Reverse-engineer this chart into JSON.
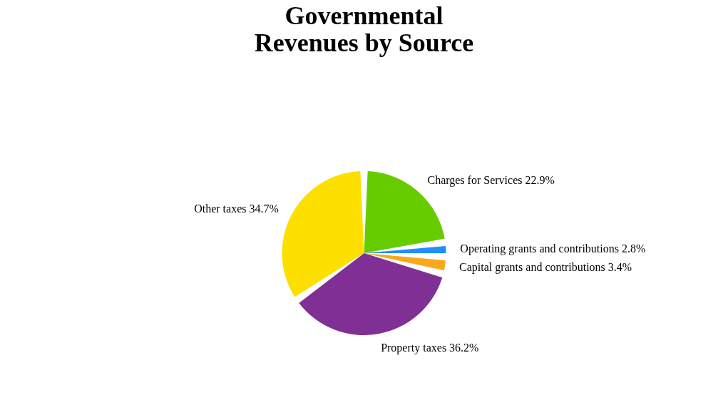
{
  "chart_data": {
    "type": "pie",
    "title": "Governmental\nRevenues by Source",
    "categories": [
      "Charges for Services",
      "Operating grants and contributions",
      "Capital grants and contributions",
      "Property taxes",
      "Other taxes"
    ],
    "values": [
      22.9,
      2.8,
      3.4,
      36.2,
      34.7
    ],
    "value_labels": [
      "22.9%",
      "2.8%",
      "3.4%",
      "36.2%",
      "34.7%"
    ],
    "colors": [
      "#66cc00",
      "#1e90ff",
      "#f9a81b",
      "#803095",
      "#fde000"
    ]
  }
}
